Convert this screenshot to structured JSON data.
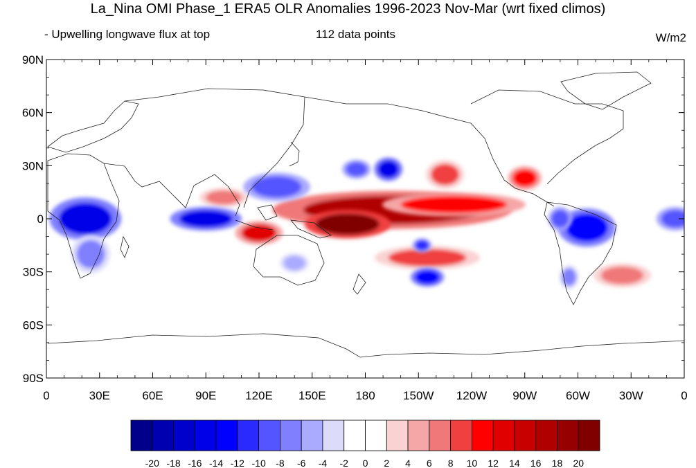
{
  "title": "La_Nina OMI Phase_1 ERA5 OLR Anomalies 1996-2023 Nov-Mar (wrt fixed climos)",
  "subtitle_left": "- Upwelling longwave flux at top",
  "subtitle_center": "112 data points",
  "units": "W/m2",
  "lat_ticks": [
    {
      "value": 90,
      "label": "90N"
    },
    {
      "value": 60,
      "label": "60N"
    },
    {
      "value": 30,
      "label": "30N"
    },
    {
      "value": 0,
      "label": "0"
    },
    {
      "value": -30,
      "label": "30S"
    },
    {
      "value": -60,
      "label": "60S"
    },
    {
      "value": -90,
      "label": "90S"
    }
  ],
  "lon_ticks": [
    {
      "value": 0,
      "label": "0"
    },
    {
      "value": 30,
      "label": "30E"
    },
    {
      "value": 60,
      "label": "60E"
    },
    {
      "value": 90,
      "label": "90E"
    },
    {
      "value": 120,
      "label": "120E"
    },
    {
      "value": 150,
      "label": "150E"
    },
    {
      "value": 180,
      "label": "180"
    },
    {
      "value": 210,
      "label": "150W"
    },
    {
      "value": 240,
      "label": "120W"
    },
    {
      "value": 270,
      "label": "90W"
    },
    {
      "value": 300,
      "label": "60W"
    },
    {
      "value": 330,
      "label": "30W"
    },
    {
      "value": 360,
      "label": "0"
    }
  ],
  "colorbar": {
    "colors": [
      "#00008a",
      "#0000b0",
      "#0000cc",
      "#0000e8",
      "#0000ff",
      "#2a2aff",
      "#5555ff",
      "#8080ff",
      "#aaaaff",
      "#dcdcfa",
      "#ffffff",
      "#ffffff",
      "#fad2d2",
      "#f5a6a6",
      "#f07878",
      "#f04040",
      "#ff0000",
      "#e00000",
      "#c80000",
      "#b00000",
      "#960000",
      "#800000"
    ],
    "labels": [
      "-20",
      "-18",
      "-16",
      "-14",
      "-12",
      "-10",
      "-8",
      "-6",
      "-4",
      "-2",
      "0",
      "2",
      "4",
      "6",
      "8",
      "10",
      "12",
      "14",
      "16",
      "18",
      "20"
    ]
  },
  "anomalies": [
    {
      "lon": 195,
      "lat": 5,
      "rx": 50,
      "ry": 8,
      "value": 16
    },
    {
      "lon": 170,
      "lat": -3,
      "rx": 18,
      "ry": 6,
      "value": 20
    },
    {
      "lon": 230,
      "lat": 8,
      "rx": 30,
      "ry": 5,
      "value": 10
    },
    {
      "lon": 225,
      "lat": 25,
      "rx": 8,
      "ry": 6,
      "value": 8
    },
    {
      "lon": 120,
      "lat": -8,
      "rx": 10,
      "ry": 5,
      "value": 12
    },
    {
      "lon": 270,
      "lat": 23,
      "rx": 7,
      "ry": 5,
      "value": 10
    },
    {
      "lon": 215,
      "lat": -22,
      "rx": 22,
      "ry": 5,
      "value": 8
    },
    {
      "lon": 325,
      "lat": -32,
      "rx": 12,
      "ry": 5,
      "value": 6
    },
    {
      "lon": 100,
      "lat": 12,
      "rx": 10,
      "ry": 4,
      "value": 6
    },
    {
      "lon": 22,
      "lat": 0,
      "rx": 15,
      "ry": 9,
      "value": -16
    },
    {
      "lon": 90,
      "lat": 0,
      "rx": 15,
      "ry": 5,
      "value": -16
    },
    {
      "lon": 130,
      "lat": 18,
      "rx": 14,
      "ry": 6,
      "value": -10
    },
    {
      "lon": 193,
      "lat": 28,
      "rx": 6,
      "ry": 5,
      "value": -16
    },
    {
      "lon": 175,
      "lat": 28,
      "rx": 6,
      "ry": 4,
      "value": -10
    },
    {
      "lon": 215,
      "lat": -33,
      "rx": 7,
      "ry": 4,
      "value": -14
    },
    {
      "lon": 212,
      "lat": -15,
      "rx": 4,
      "ry": 3,
      "value": -12
    },
    {
      "lon": 305,
      "lat": -5,
      "rx": 12,
      "ry": 8,
      "value": -14
    },
    {
      "lon": 290,
      "lat": 0,
      "rx": 5,
      "ry": 5,
      "value": -10
    },
    {
      "lon": 355,
      "lat": 0,
      "rx": 8,
      "ry": 5,
      "value": -10
    },
    {
      "lon": 295,
      "lat": -33,
      "rx": 4,
      "ry": 5,
      "value": -8
    },
    {
      "lon": 140,
      "lat": -25,
      "rx": 6,
      "ry": 4,
      "value": -6
    },
    {
      "lon": 25,
      "lat": -20,
      "rx": 8,
      "ry": 8,
      "value": -8
    }
  ]
}
